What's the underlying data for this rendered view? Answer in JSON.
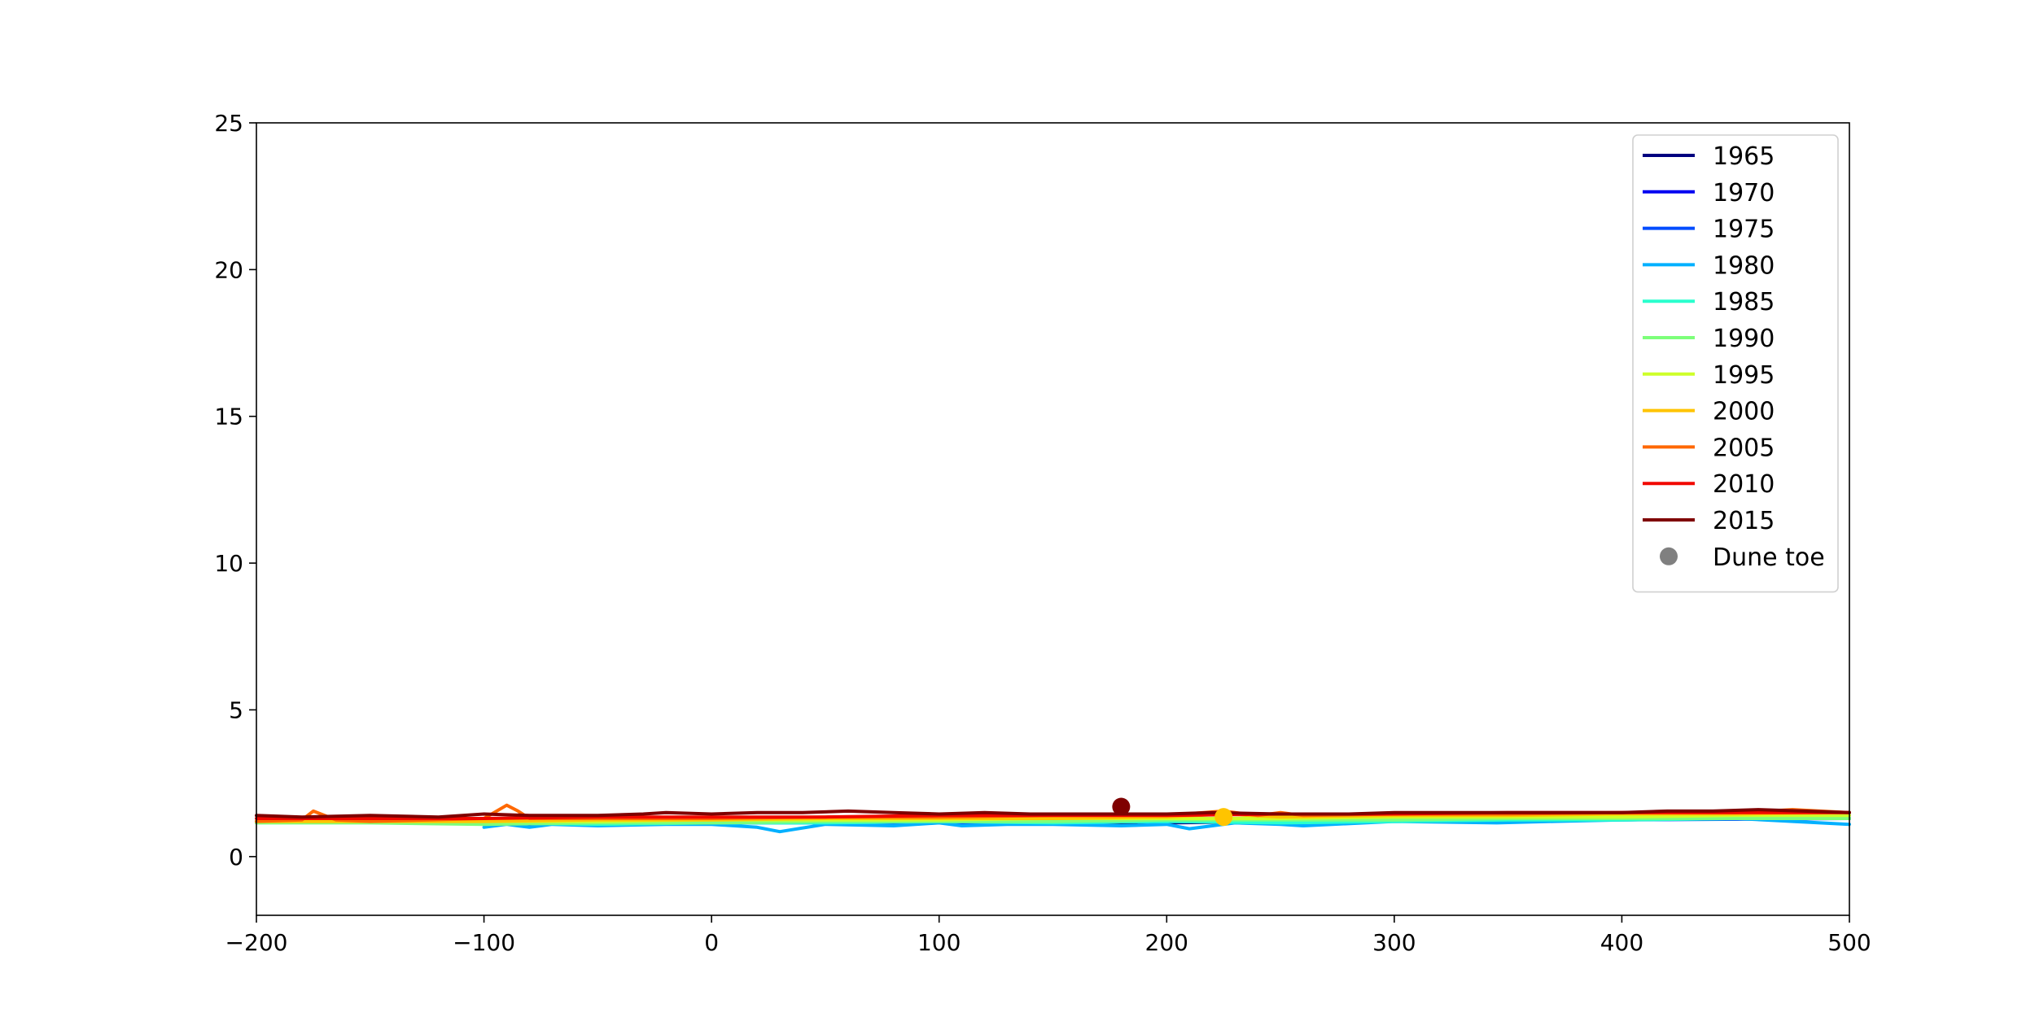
{
  "chart_data": {
    "type": "line",
    "title": "",
    "xlabel": "",
    "ylabel": "",
    "xlim": [
      -200,
      500
    ],
    "ylim": [
      -2,
      25
    ],
    "xticks": [
      -200,
      -100,
      0,
      100,
      200,
      300,
      400,
      500
    ],
    "yticks": [
      0,
      5,
      10,
      15,
      20,
      25
    ],
    "xtick_labels": [
      "−200",
      "−100",
      "0",
      "100",
      "200",
      "300",
      "400",
      "500"
    ],
    "ytick_labels": [
      "0",
      "5",
      "10",
      "15",
      "20",
      "25"
    ],
    "grid": false,
    "legend_position": "top-right",
    "series": [
      {
        "name": "1965",
        "color": "#00007f",
        "x": [
          -100,
          0,
          100,
          200,
          300,
          400,
          500
        ],
        "y": [
          1.15,
          1.2,
          1.2,
          1.15,
          1.25,
          1.3,
          1.3
        ]
      },
      {
        "name": "1970",
        "color": "#0000f1",
        "x": [
          -100,
          0,
          100,
          200,
          300,
          400,
          500
        ],
        "y": [
          1.1,
          1.15,
          1.2,
          1.2,
          1.25,
          1.3,
          1.3
        ]
      },
      {
        "name": "1975",
        "color": "#004cff",
        "x": [
          -100,
          0,
          100,
          200,
          300,
          400,
          500
        ],
        "y": [
          1.1,
          1.15,
          1.15,
          1.2,
          1.2,
          1.25,
          1.3
        ]
      },
      {
        "name": "1980",
        "color": "#00b0ff",
        "x": [
          -100,
          -90,
          -80,
          -70,
          -50,
          -20,
          0,
          20,
          30,
          50,
          80,
          100,
          110,
          130,
          150,
          180,
          200,
          210,
          230,
          250,
          260,
          300,
          345,
          370,
          400,
          450,
          500
        ],
        "y": [
          1.0,
          1.1,
          1.0,
          1.1,
          1.05,
          1.1,
          1.1,
          1.0,
          0.85,
          1.1,
          1.05,
          1.15,
          1.05,
          1.1,
          1.1,
          1.05,
          1.1,
          0.95,
          1.15,
          1.1,
          1.05,
          1.2,
          1.15,
          1.2,
          1.25,
          1.3,
          1.1
        ]
      },
      {
        "name": "1985",
        "color": "#29ffce",
        "x": [
          -100,
          -50,
          0,
          50,
          100,
          150,
          200,
          250,
          300,
          350,
          400,
          450,
          500
        ],
        "y": [
          1.15,
          1.1,
          1.15,
          1.15,
          1.2,
          1.15,
          1.2,
          1.15,
          1.2,
          1.25,
          1.25,
          1.3,
          1.3
        ]
      },
      {
        "name": "1990",
        "color": "#7dff7a",
        "x": [
          -200,
          -150,
          -100,
          -50,
          0,
          50,
          100,
          150,
          200,
          250,
          300,
          350,
          400,
          450,
          500
        ],
        "y": [
          1.15,
          1.15,
          1.1,
          1.15,
          1.15,
          1.2,
          1.2,
          1.2,
          1.25,
          1.25,
          1.25,
          1.3,
          1.3,
          1.3,
          1.3
        ]
      },
      {
        "name": "1995",
        "color": "#ceff29",
        "x": [
          -200,
          -150,
          -100,
          -50,
          0,
          50,
          100,
          150,
          200,
          250,
          300,
          350,
          400,
          450,
          500
        ],
        "y": [
          1.2,
          1.2,
          1.2,
          1.2,
          1.25,
          1.25,
          1.25,
          1.3,
          1.3,
          1.3,
          1.35,
          1.35,
          1.35,
          1.4,
          1.4
        ]
      },
      {
        "name": "2000",
        "color": "#ffc400",
        "x": [
          -200,
          -150,
          -100,
          -50,
          0,
          50,
          100,
          150,
          200,
          225,
          250,
          300,
          350,
          400,
          450,
          500
        ],
        "y": [
          1.2,
          1.2,
          1.2,
          1.25,
          1.25,
          1.3,
          1.3,
          1.3,
          1.35,
          1.45,
          1.35,
          1.4,
          1.4,
          1.45,
          1.45,
          1.5
        ]
      },
      {
        "name": "2005",
        "color": "#ff6800",
        "x": [
          -200,
          -180,
          -175,
          -165,
          -150,
          -100,
          -90,
          -85,
          -80,
          -50,
          0,
          50,
          100,
          150,
          200,
          225,
          240,
          250,
          260,
          300,
          350,
          400,
          450,
          475,
          500
        ],
        "y": [
          1.2,
          1.25,
          1.55,
          1.25,
          1.2,
          1.3,
          1.75,
          1.55,
          1.3,
          1.3,
          1.3,
          1.35,
          1.35,
          1.4,
          1.4,
          1.55,
          1.4,
          1.5,
          1.4,
          1.45,
          1.45,
          1.5,
          1.5,
          1.6,
          1.5
        ]
      },
      {
        "name": "2010",
        "color": "#f10800",
        "x": [
          -200,
          -150,
          -100,
          -50,
          0,
          50,
          100,
          150,
          200,
          250,
          300,
          350,
          400,
          450,
          500
        ],
        "y": [
          1.3,
          1.3,
          1.3,
          1.35,
          1.35,
          1.35,
          1.4,
          1.4,
          1.4,
          1.45,
          1.45,
          1.5,
          1.5,
          1.5,
          1.5
        ]
      },
      {
        "name": "2015",
        "color": "#7f0000",
        "x": [
          -200,
          -180,
          -150,
          -120,
          -100,
          -80,
          -50,
          -30,
          -20,
          0,
          20,
          40,
          60,
          80,
          100,
          120,
          140,
          160,
          180,
          200,
          220,
          250,
          280,
          300,
          320,
          350,
          380,
          400,
          420,
          440,
          460,
          480,
          500
        ],
        "y": [
          1.4,
          1.35,
          1.4,
          1.35,
          1.45,
          1.4,
          1.4,
          1.45,
          1.5,
          1.45,
          1.5,
          1.5,
          1.55,
          1.5,
          1.45,
          1.5,
          1.45,
          1.45,
          1.45,
          1.45,
          1.5,
          1.45,
          1.45,
          1.5,
          1.5,
          1.5,
          1.5,
          1.5,
          1.55,
          1.55,
          1.6,
          1.55,
          1.5
        ]
      }
    ],
    "markers": [
      {
        "name": "Dune toe",
        "legend_color": "#808080",
        "points": [
          {
            "x": 180,
            "y": 1.7,
            "color": "#7f0000"
          },
          {
            "x": 225,
            "y": 1.35,
            "color": "#ffc400"
          }
        ]
      }
    ]
  }
}
